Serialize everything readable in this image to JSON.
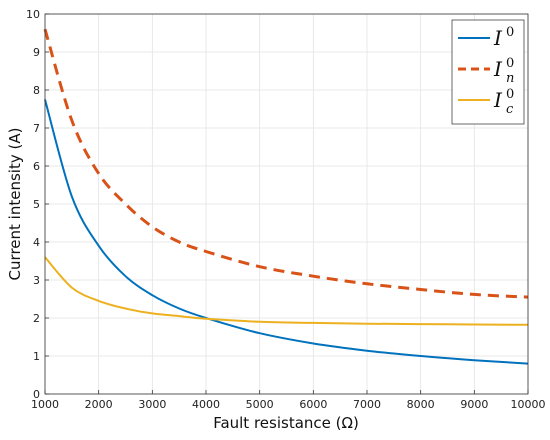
{
  "chart_data": {
    "type": "line",
    "title": "",
    "xlabel": "Fault resistance (Ω)",
    "ylabel": "Current intensity (A)",
    "xlim": [
      1000,
      10000
    ],
    "ylim": [
      0,
      10
    ],
    "xticks": [
      "1000",
      "2000",
      "3000",
      "4000",
      "5000",
      "6000",
      "7000",
      "8000",
      "9000",
      "10000"
    ],
    "yticks": [
      "0",
      "1",
      "2",
      "3",
      "4",
      "5",
      "6",
      "7",
      "8",
      "9",
      "10"
    ],
    "grid": true,
    "legend_position": "top-right",
    "x": [
      1000,
      1500,
      2000,
      2500,
      3000,
      3500,
      4000,
      5000,
      6000,
      7000,
      8000,
      9000,
      10000
    ],
    "series": [
      {
        "name": "I^0",
        "legend_main": "I",
        "legend_sup": "0",
        "legend_sub": "",
        "color": "#0072BD",
        "style": "solid",
        "values": [
          7.75,
          5.2,
          3.9,
          3.1,
          2.6,
          2.25,
          2.0,
          1.6,
          1.33,
          1.14,
          1.0,
          0.89,
          0.8
        ]
      },
      {
        "name": "I_n^0",
        "legend_main": "I",
        "legend_sup": "0",
        "legend_sub": "n",
        "color": "#D95319",
        "style": "dashed",
        "values": [
          9.6,
          7.2,
          5.8,
          5.0,
          4.4,
          4.0,
          3.75,
          3.35,
          3.1,
          2.9,
          2.75,
          2.62,
          2.55
        ]
      },
      {
        "name": "I_c^0",
        "legend_main": "I",
        "legend_sup": "0",
        "legend_sub": "c",
        "color": "#EDB120",
        "style": "solid",
        "values": [
          3.6,
          2.8,
          2.45,
          2.25,
          2.12,
          2.05,
          1.98,
          1.9,
          1.87,
          1.85,
          1.84,
          1.83,
          1.82
        ]
      }
    ]
  }
}
